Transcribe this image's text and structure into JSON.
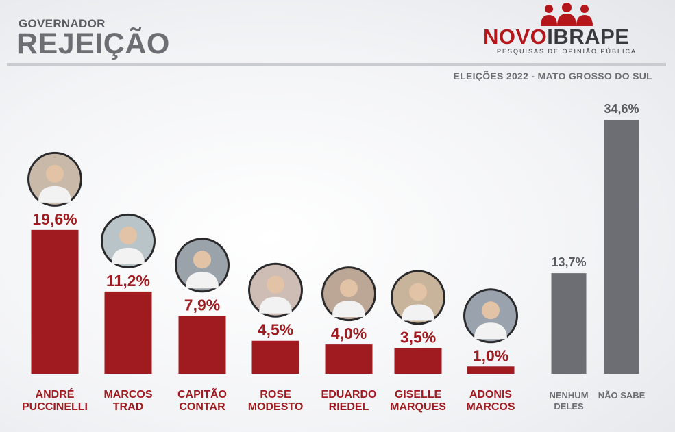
{
  "header": {
    "subtitle": "GOVERNADOR",
    "title": "REJEIÇÃO",
    "caption": "ELEIÇÕES 2022 - MATO GROSSO DO SUL"
  },
  "logo": {
    "brand_part1": "NOVO",
    "brand_part2": "IBRAPE",
    "tagline": "PESQUISAS DE OPINIÃO PÚBLICA",
    "accent_color": "#b4161b",
    "dark_color": "#3a3a3d",
    "icon": "people-group-icon"
  },
  "chart_data": {
    "type": "bar",
    "title": "REJEIÇÃO",
    "xlabel": "",
    "ylabel": "",
    "ylim": [
      0,
      36
    ],
    "grid": false,
    "legend": "none",
    "categories": [
      [
        "ANDRÉ",
        "PUCCINELLI"
      ],
      [
        "MARCOS",
        "TRAD"
      ],
      [
        "CAPITÃO",
        "CONTAR"
      ],
      [
        "ROSE",
        "MODESTO"
      ],
      [
        "EDUARDO",
        "RIEDEL"
      ],
      [
        "GISELLE",
        "MARQUES"
      ],
      [
        "ADONIS",
        "MARCOS"
      ],
      [
        "NENHUM",
        "DELES"
      ],
      [
        "NÃO SABE"
      ]
    ],
    "values": [
      19.6,
      11.2,
      7.9,
      4.5,
      4.0,
      3.5,
      1.0,
      13.7,
      34.6
    ],
    "value_labels": [
      "19,6%",
      "11,2%",
      "7,9%",
      "4,5%",
      "4,0%",
      "3,5%",
      "1,0%",
      "13,7%",
      "34,6%"
    ],
    "bar_kinds": [
      "candidate",
      "candidate",
      "candidate",
      "candidate",
      "candidate",
      "candidate",
      "candidate",
      "other",
      "other"
    ],
    "colors": {
      "candidate": "#a01b20",
      "other": "#6d6e73"
    }
  }
}
